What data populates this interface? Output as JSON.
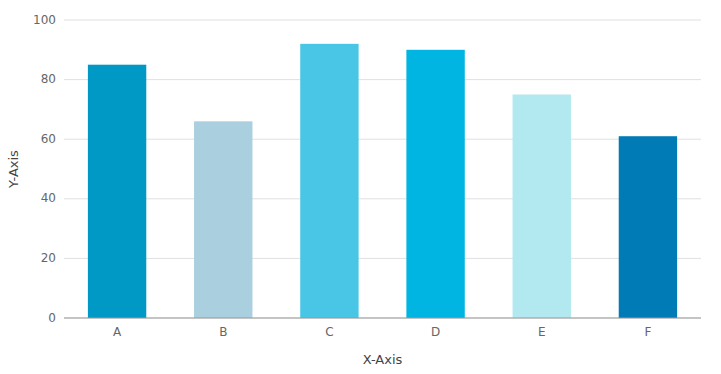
{
  "chart_data": {
    "type": "bar",
    "categories": [
      "A",
      "B",
      "C",
      "D",
      "E",
      "F"
    ],
    "values": [
      85,
      66,
      92,
      90,
      75,
      61
    ],
    "colors": [
      "#0099c6",
      "#aacfdf",
      "#49c6e5",
      "#00b5e2",
      "#b2e8f0",
      "#007bb5"
    ],
    "xlabel": "X-Axis",
    "ylabel": "Y-Axis",
    "ylim": [
      0,
      100
    ],
    "yticks": [
      0,
      20,
      40,
      60,
      80,
      100
    ],
    "grid": true
  }
}
